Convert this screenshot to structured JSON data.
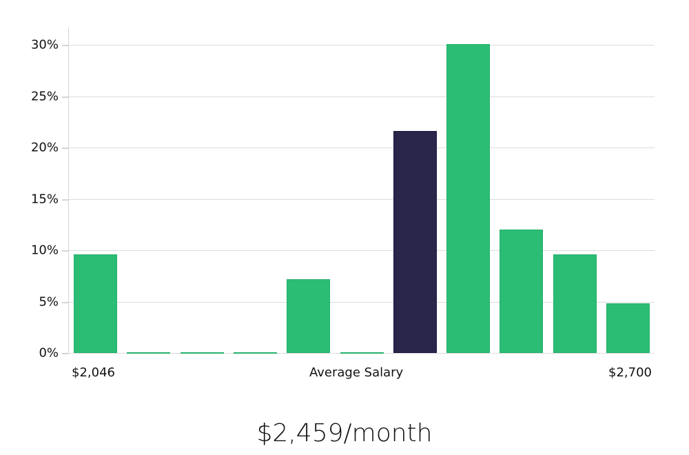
{
  "chart_data": {
    "type": "bar",
    "title": "$2,459/month",
    "xlabel": "Average Salary",
    "ylabel": "",
    "x_tick_labels": {
      "left": "$2,046",
      "center": "Average Salary",
      "right": "$2,700"
    },
    "categories": [
      "bin1",
      "bin2",
      "bin3",
      "bin4",
      "bin5",
      "bin6",
      "bin7",
      "bin8",
      "bin9",
      "bin10",
      "bin11"
    ],
    "values": [
      9.6,
      0,
      0,
      0,
      7.2,
      0,
      21.6,
      30.1,
      12.0,
      9.6,
      4.8
    ],
    "highlighted_index": 6,
    "y_ticks": [
      "0%",
      "5%",
      "10%",
      "15%",
      "20%",
      "25%",
      "30%"
    ],
    "ylim": [
      0,
      31.5
    ],
    "grid": true,
    "legend": null,
    "colors": {
      "bar": "#2bbd74",
      "highlight": "#29264a",
      "grid": "#dcdcdc"
    }
  },
  "labels": {
    "x_min": "$2,046",
    "x_center": "Average Salary",
    "x_max": "$2,700",
    "title": "$2,459/month"
  }
}
